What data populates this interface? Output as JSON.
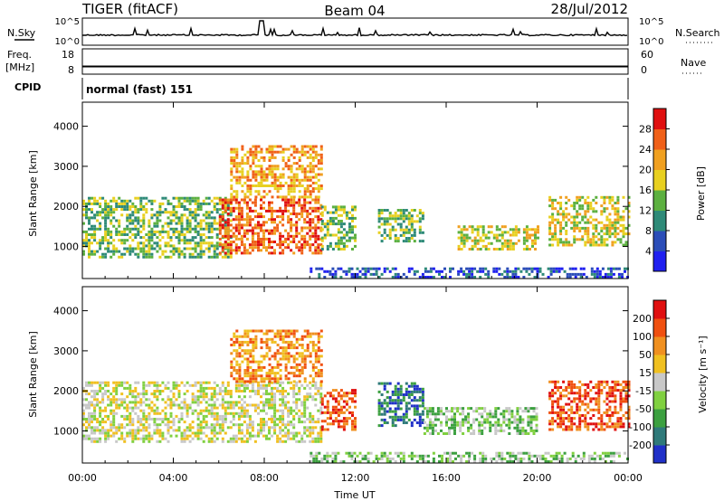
{
  "header": {
    "station": "TIGER (fitACF)",
    "beam": "Beam 04",
    "date": "28/Jul/2012"
  },
  "panels": {
    "nsky": {
      "label": "N.Sky",
      "right_label": "N.Search",
      "ticks_left": [
        "10^5",
        "10^0"
      ],
      "ticks_right": [
        "10^5",
        "10^0"
      ]
    },
    "freq": {
      "label_line1": "Freq.",
      "label_line2": "[MHz]",
      "right_label": "Nave",
      "ticks_left": [
        "18",
        "8"
      ],
      "ticks_right": [
        "60",
        "0"
      ]
    },
    "cpid": {
      "label": "CPID",
      "text": "normal (fast) 151"
    }
  },
  "chart_data": [
    {
      "type": "heatmap",
      "name": "power",
      "ylabel": "Slant Range [km]",
      "xlabel": "Time UT",
      "x_ticks": [
        "00:00",
        "04:00",
        "08:00",
        "12:00",
        "16:00",
        "20:00",
        "00:00"
      ],
      "y_ticks": [
        1000,
        2000,
        3000,
        4000
      ],
      "ylim": [
        200,
        4600
      ],
      "xlim_hours": [
        0,
        24
      ],
      "colorbar": {
        "label": "Power [dB]",
        "ticks": [
          4,
          8,
          12,
          16,
          20,
          24,
          28
        ],
        "colors": [
          "#2020f0",
          "#2b4db8",
          "#2e8a78",
          "#5cb040",
          "#e8d020",
          "#f0a020",
          "#f06018",
          "#e01010"
        ]
      },
      "echo_regions": [
        {
          "t0": 0.0,
          "t1": 6.5,
          "r0": 700,
          "r1": 2200,
          "level": 3
        },
        {
          "t0": 6.0,
          "t1": 10.5,
          "r0": 800,
          "r1": 2200,
          "level": 6
        },
        {
          "t0": 6.5,
          "t1": 10.5,
          "r0": 2200,
          "r1": 3500,
          "level": 5
        },
        {
          "t0": 10.5,
          "t1": 12.0,
          "r0": 900,
          "r1": 2000,
          "level": 3
        },
        {
          "t0": 13.0,
          "t1": 15.0,
          "r0": 1100,
          "r1": 1900,
          "level": 3
        },
        {
          "t0": 16.5,
          "t1": 20.0,
          "r0": 900,
          "r1": 1500,
          "level": 4
        },
        {
          "t0": 20.5,
          "t1": 24.0,
          "r0": 1000,
          "r1": 2200,
          "level": 4
        },
        {
          "t0": 10.0,
          "t1": 24.0,
          "r0": 200,
          "r1": 450,
          "level": 1
        }
      ]
    },
    {
      "type": "heatmap",
      "name": "velocity",
      "ylabel": "Slant Range [km]",
      "xlabel": "Time UT",
      "x_ticks": [
        "00:00",
        "04:00",
        "08:00",
        "12:00",
        "16:00",
        "20:00",
        "00:00"
      ],
      "y_ticks": [
        1000,
        2000,
        3000,
        4000
      ],
      "ylim": [
        200,
        4600
      ],
      "xlim_hours": [
        0,
        24
      ],
      "colorbar": {
        "label": "Velocity [m s⁻¹]",
        "ticks": [
          200,
          100,
          50,
          15,
          -15,
          -50,
          -100,
          -200
        ],
        "colors": [
          "#2030c8",
          "#2f7a7a",
          "#3ca040",
          "#80d040",
          "#c8c8c8",
          "#f0c020",
          "#f09020",
          "#f05010",
          "#e01010"
        ]
      },
      "echo_regions": [
        {
          "t0": 0.0,
          "t1": 10.5,
          "r0": 700,
          "r1": 2200,
          "level": 4
        },
        {
          "t0": 6.5,
          "t1": 10.5,
          "r0": 2200,
          "r1": 3500,
          "level": 6
        },
        {
          "t0": 10.5,
          "t1": 12.0,
          "r0": 1000,
          "r1": 2000,
          "level": 7
        },
        {
          "t0": 13.0,
          "t1": 15.0,
          "r0": 1100,
          "r1": 2200,
          "level": 1
        },
        {
          "t0": 15.0,
          "t1": 20.0,
          "r0": 900,
          "r1": 1600,
          "level": 3
        },
        {
          "t0": 20.5,
          "t1": 24.0,
          "r0": 1000,
          "r1": 2200,
          "level": 7
        },
        {
          "t0": 10.0,
          "t1": 24.0,
          "r0": 200,
          "r1": 450,
          "level": 3
        }
      ]
    }
  ]
}
